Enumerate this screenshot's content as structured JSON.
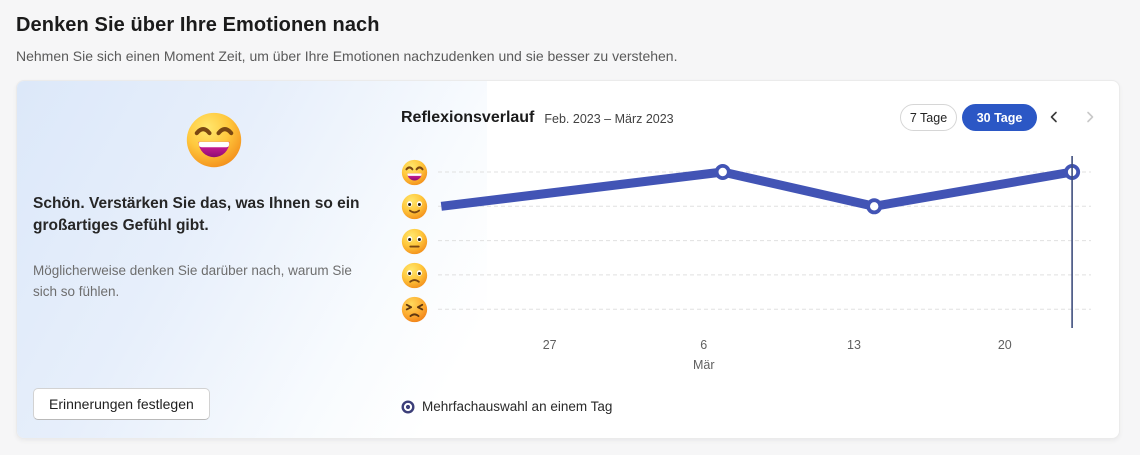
{
  "page": {
    "title": "Denken Sie über Ihre Emotionen nach",
    "subtitle": "Nehmen Sie sich einen Moment Zeit, um über Ihre Emotionen nachzudenken und sie besser zu verstehen."
  },
  "mood_panel": {
    "emoji": "laughing-face",
    "heading": "Schön. Verstärken Sie das, was Ihnen so ein großartiges Gefühl gibt.",
    "description": "Möglicherweise denken Sie darüber nach, warum Sie sich so fühlen.",
    "button_label": "Erinnerungen festlegen"
  },
  "chart": {
    "range_buttons": [
      {
        "label": "7 Tage",
        "selected": false
      },
      {
        "label": "30 Tage",
        "selected": true
      }
    ],
    "prev_button": {
      "icon": "chevron-left-icon",
      "enabled": true
    },
    "next_button": {
      "icon": "chevron-right-icon",
      "enabled": false
    }
  },
  "chart_data": {
    "type": "line",
    "title": "Reflexionsverlauf",
    "subtitle": "Feb. 2023 – März 2023",
    "legend": "Mehrfachauswahl an einem Tag",
    "grid": "dashed horizontal",
    "y_axis": {
      "type": "emoji_scale",
      "levels": [
        {
          "value": 5,
          "emoji": "laughing-face-icon"
        },
        {
          "value": 4,
          "emoji": "slightly-smiling-face-icon"
        },
        {
          "value": 3,
          "emoji": "neutral-face-icon"
        },
        {
          "value": 2,
          "emoji": "frowning-face-icon"
        },
        {
          "value": 1,
          "emoji": "persevering-face-icon"
        }
      ]
    },
    "x_ticks": [
      {
        "label": "27",
        "sublabel": "",
        "pos": 0.171
      },
      {
        "label": "6",
        "sublabel": "Mär",
        "pos": 0.407
      },
      {
        "label": "13",
        "sublabel": "",
        "pos": 0.637
      },
      {
        "label": "20",
        "sublabel": "",
        "pos": 0.868
      }
    ],
    "points": [
      {
        "x": "22. Feb.",
        "value": 4,
        "pos": 0.005,
        "marker": false,
        "selected": false
      },
      {
        "x": "7. Mär.",
        "value": 5,
        "pos": 0.436,
        "marker": true,
        "selected": false
      },
      {
        "x": "14. Mär.",
        "value": 4,
        "pos": 0.668,
        "marker": true,
        "selected": false
      },
      {
        "x": "23. Mär.",
        "value": 5,
        "pos": 0.971,
        "marker": true,
        "selected": true
      }
    ]
  },
  "colors": {
    "line": "#4254b5",
    "selection_line": "#3e4e7d",
    "legend_dot": "#3c3e79",
    "selected_pill_bg": "#2b57c5",
    "grid": "#e0e0e0"
  }
}
